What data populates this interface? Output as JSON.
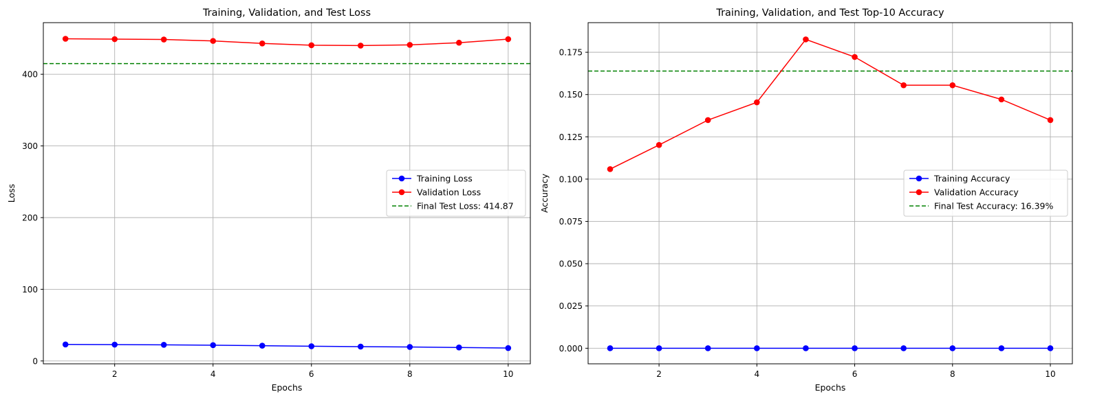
{
  "chart_data": [
    {
      "type": "line",
      "title": "Training, Validation, and Test Loss",
      "xlabel": "Epochs",
      "ylabel": "Loss",
      "xlim": [
        0.55,
        10.45
      ],
      "ylim": [
        -4,
        472
      ],
      "xticks": [
        2,
        4,
        6,
        8,
        10
      ],
      "xtick_labels": [
        "2",
        "4",
        "6",
        "8",
        "10"
      ],
      "yticks": [
        0,
        100,
        200,
        300,
        400
      ],
      "ytick_labels": [
        "0",
        "100",
        "200",
        "300",
        "400"
      ],
      "grid": true,
      "legend_position": "center-right",
      "x": [
        1,
        2,
        3,
        4,
        5,
        6,
        7,
        8,
        9,
        10
      ],
      "series": [
        {
          "name": "Training Loss",
          "color": "#0000ff",
          "marker": "circle",
          "values": [
            23.0,
            22.8,
            22.5,
            22.0,
            21.3,
            20.5,
            20.0,
            19.5,
            18.8,
            18.0
          ]
        },
        {
          "name": "Validation Loss",
          "color": "#ff0000",
          "marker": "circle",
          "values": [
            449.5,
            449.0,
            448.5,
            446.5,
            443.0,
            440.5,
            440.0,
            441.0,
            444.0,
            449.0
          ]
        }
      ],
      "hlines": [
        {
          "name": "Final Test Loss: 414.87",
          "value": 414.87,
          "color": "#008000",
          "style": "dashed"
        }
      ]
    },
    {
      "type": "line",
      "title": "Training, Validation, and Test Top-10 Accuracy",
      "xlabel": "Epochs",
      "ylabel": "Accuracy",
      "xlim": [
        0.55,
        10.45
      ],
      "ylim": [
        -0.0092,
        0.1925
      ],
      "xticks": [
        2,
        4,
        6,
        8,
        10
      ],
      "xtick_labels": [
        "2",
        "4",
        "6",
        "8",
        "10"
      ],
      "yticks": [
        0,
        0.025,
        0.05,
        0.075,
        0.1,
        0.125,
        0.15,
        0.175
      ],
      "ytick_labels": [
        "0.000",
        "0.025",
        "0.050",
        "0.075",
        "0.100",
        "0.125",
        "0.150",
        "0.175"
      ],
      "grid": true,
      "legend_position": "center-right",
      "x": [
        1,
        2,
        3,
        4,
        5,
        6,
        7,
        8,
        9,
        10
      ],
      "series": [
        {
          "name": "Training Accuracy",
          "color": "#0000ff",
          "marker": "circle",
          "values": [
            0,
            0,
            0,
            0,
            0,
            0,
            0,
            0,
            0,
            0
          ]
        },
        {
          "name": "Validation Accuracy",
          "color": "#ff0000",
          "marker": "circle",
          "values": [
            0.1059,
            0.1202,
            0.1349,
            0.1454,
            0.1826,
            0.1722,
            0.1555,
            0.1555,
            0.1471,
            0.1349
          ]
        }
      ],
      "hlines": [
        {
          "name": "Final Test Accuracy: 16.39%",
          "value": 0.1639,
          "color": "#008000",
          "style": "dashed"
        }
      ]
    }
  ]
}
